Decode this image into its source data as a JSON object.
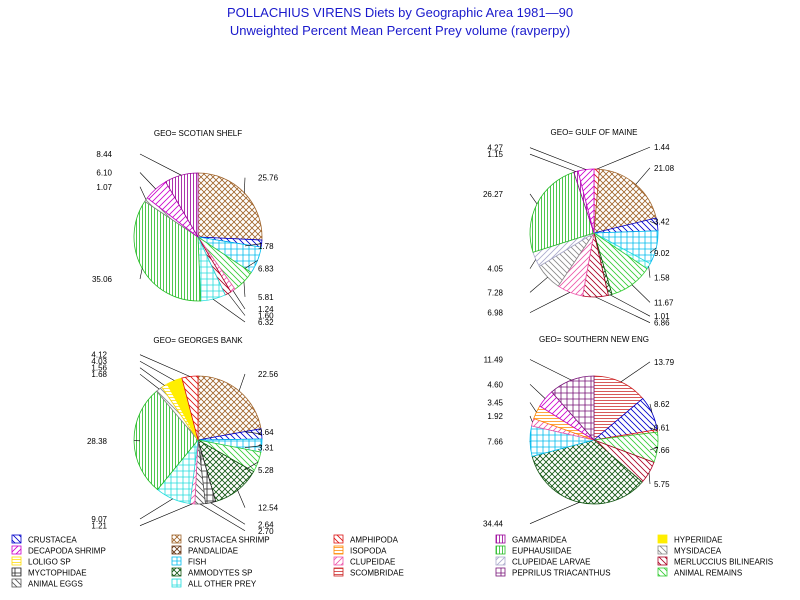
{
  "title": "POLLACHIUS VIRENS Diets by Geographic Area 1981—90",
  "subtitle": "Unweighted Percent Mean Percent Prey  volume (ravperpy)",
  "categories": [
    {
      "name": "CRUSTACEA",
      "color": "#0000cc",
      "pattern": "diag-rev"
    },
    {
      "name": "CRUSTACEA SHRIMP",
      "color": "#a0642a",
      "pattern": "crosshatch"
    },
    {
      "name": "AMPHIPODA",
      "color": "#dd1111",
      "pattern": "diag-rev"
    },
    {
      "name": "GAMMARIDEA",
      "color": "#990099",
      "pattern": "vertical"
    },
    {
      "name": "HYPERIIDAE",
      "color": "#ffee00",
      "pattern": "solid"
    },
    {
      "name": "DECAPODA SHRIMP",
      "color": "#cc00cc",
      "pattern": "diag"
    },
    {
      "name": "PANDALIDAE",
      "color": "#663311",
      "pattern": "crosshatch"
    },
    {
      "name": "ISOPODA",
      "color": "#ff8800",
      "pattern": "horizontal"
    },
    {
      "name": "EUPHAUSIIDAE",
      "color": "#22bb22",
      "pattern": "vertical"
    },
    {
      "name": "MYSIDACEA",
      "color": "#888888",
      "pattern": "diag-rev"
    },
    {
      "name": "LOLIGO SP",
      "color": "#ffdd00",
      "pattern": "horizontal"
    },
    {
      "name": "FISH",
      "color": "#00bbee",
      "pattern": "grid"
    },
    {
      "name": "CLUPEIDAE",
      "color": "#ee55aa",
      "pattern": "diag"
    },
    {
      "name": "CLUPEIDAE LARVAE",
      "color": "#aaaacc",
      "pattern": "diag"
    },
    {
      "name": "MERLUCCIUS BILINEARIS",
      "color": "#aa0022",
      "pattern": "diag-rev"
    },
    {
      "name": "MYCTOPHIDAE",
      "color": "#222222",
      "pattern": "grid"
    },
    {
      "name": "AMMODYTES SP",
      "color": "#115511",
      "pattern": "crosshatch"
    },
    {
      "name": "SCOMBRIDAE",
      "color": "#cc2222",
      "pattern": "horizontal"
    },
    {
      "name": "PEPRILUS TRIACANTHUS",
      "color": "#771177",
      "pattern": "grid"
    },
    {
      "name": "ANIMAL REMAINS",
      "color": "#33cc33",
      "pattern": "diag-rev"
    },
    {
      "name": "ANIMAL EGGS",
      "color": "#555555",
      "pattern": "diag-rev"
    },
    {
      "name": "ALL OTHER PREY",
      "color": "#22dddd",
      "pattern": "grid"
    }
  ],
  "chart_data": [
    {
      "type": "pie",
      "title": "GEO= SCOTIAN SHELF",
      "slices": [
        {
          "category": "CRUSTACEA SHRIMP",
          "value": 25.76
        },
        {
          "category": "CRUSTACEA",
          "value": 1.78
        },
        {
          "category": "FISH",
          "value": 6.83
        },
        {
          "category": "ANIMAL REMAINS",
          "value": 5.81
        },
        {
          "category": "CLUPEIDAE",
          "value": 1.24
        },
        {
          "category": "MERLUCCIUS BILINEARIS",
          "value": 1.6
        },
        {
          "category": "ALL OTHER PREY",
          "value": 6.32
        },
        {
          "category": "EUPHAUSIIDAE",
          "value": 35.06
        },
        {
          "category": "MYSIDACEA",
          "value": 1.07
        },
        {
          "category": "DECAPODA SHRIMP",
          "value": 6.1
        },
        {
          "category": "GAMMARIDEA",
          "value": 8.44
        }
      ]
    },
    {
      "type": "pie",
      "title": "GEO= GULF OF MAINE",
      "slices": [
        {
          "category": "AMPHIPODA",
          "value": 1.44
        },
        {
          "category": "CRUSTACEA SHRIMP",
          "value": 21.08
        },
        {
          "category": "CRUSTACEA",
          "value": 3.42
        },
        {
          "category": "FISH",
          "value": 9.02
        },
        {
          "category": "ALL OTHER PREY",
          "value": 1.58
        },
        {
          "category": "ANIMAL REMAINS",
          "value": 11.67
        },
        {
          "category": "AMMODYTES SP",
          "value": 1.01
        },
        {
          "category": "MERLUCCIUS BILINEARIS",
          "value": 6.86
        },
        {
          "category": "CLUPEIDAE",
          "value": 6.98
        },
        {
          "category": "MYSIDACEA",
          "value": 7.28
        },
        {
          "category": "CLUPEIDAE LARVAE",
          "value": 4.05
        },
        {
          "category": "EUPHAUSIIDAE",
          "value": 26.27
        },
        {
          "category": "GAMMARIDEA",
          "value": 1.15
        },
        {
          "category": "DECAPODA SHRIMP",
          "value": 4.27
        }
      ]
    },
    {
      "type": "pie",
      "title": "GEO= GEORGES BANK",
      "slices": [
        {
          "category": "CRUSTACEA SHRIMP",
          "value": 22.56
        },
        {
          "category": "CRUSTACEA",
          "value": 2.64
        },
        {
          "category": "FISH",
          "value": 3.31
        },
        {
          "category": "ANIMAL REMAINS",
          "value": 5.28
        },
        {
          "category": "AMMODYTES SP",
          "value": 12.54
        },
        {
          "category": "MYCTOPHIDAE",
          "value": 2.64
        },
        {
          "category": "ANIMAL EGGS",
          "value": 2.7
        },
        {
          "category": "CLUPEIDAE",
          "value": 1.21
        },
        {
          "category": "ALL OTHER PREY",
          "value": 9.07
        },
        {
          "category": "EUPHAUSIIDAE",
          "value": 28.38
        },
        {
          "category": "MYSIDACEA",
          "value": 1.68
        },
        {
          "category": "LOLIGO SP",
          "value": 1.56
        },
        {
          "category": "HYPERIIDAE",
          "value": 4.03
        },
        {
          "category": "AMPHIPODA",
          "value": 4.12
        }
      ]
    },
    {
      "type": "pie",
      "title": "GEO= SOUTHERN NEW ENG",
      "slices": [
        {
          "category": "SCOMBRIDAE",
          "value": 13.79
        },
        {
          "category": "CRUSTACEA",
          "value": 8.62
        },
        {
          "category": "AMPHIPODA",
          "value": 0.61
        },
        {
          "category": "ANIMAL REMAINS",
          "value": 7.66
        },
        {
          "category": "MERLUCCIUS BILINEARIS",
          "value": 5.75
        },
        {
          "category": "AMMODYTES SP",
          "value": 34.44
        },
        {
          "category": "FISH",
          "value": 7.66
        },
        {
          "category": "CLUPEIDAE",
          "value": 1.92
        },
        {
          "category": "ISOPODA",
          "value": 3.45
        },
        {
          "category": "DECAPODA SHRIMP",
          "value": 4.6
        },
        {
          "category": "PEPRILUS TRIACANTHUS",
          "value": 11.49
        }
      ]
    }
  ]
}
